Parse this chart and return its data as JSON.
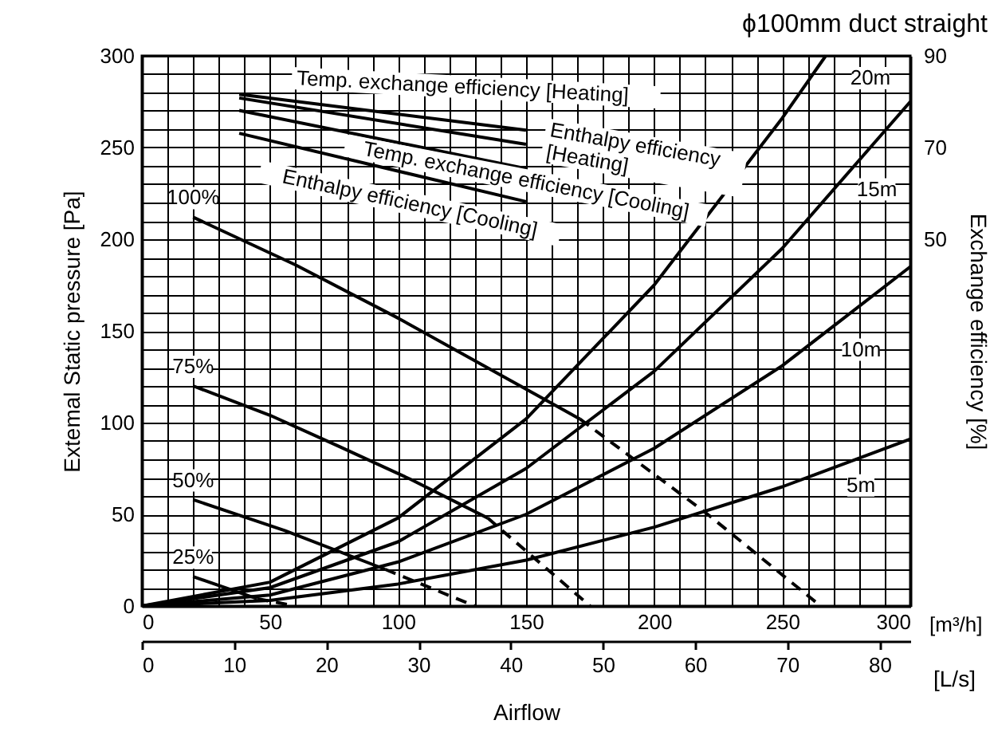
{
  "chart_data": {
    "type": "line",
    "title": "ϕ100mm duct straight",
    "xlabel": "Airflow",
    "ylabel": "Extemal Static pressure [Pa]",
    "y2label": "Exchange efficiency [%]",
    "x2label": "[L/s]",
    "annotations": [
      "[m³/h]"
    ],
    "xlim": [
      0,
      300
    ],
    "xticks": [
      0,
      {
        "value": 10,
        "label": null
      },
      {
        "value": 20,
        "label": null
      },
      {
        "value": 30,
        "label": null
      },
      {
        "value": 40,
        "label": null
      },
      50,
      {
        "value": 60,
        "label": null
      },
      {
        "value": 70,
        "label": null
      },
      {
        "value": 80,
        "label": null
      },
      {
        "value": 90,
        "label": null
      },
      100,
      {
        "value": 110,
        "label": null
      },
      {
        "value": 120,
        "label": null
      },
      {
        "value": 130,
        "label": null
      },
      {
        "value": 140,
        "label": null
      },
      150,
      {
        "value": 160,
        "label": null
      },
      {
        "value": 170,
        "label": null
      },
      {
        "value": 180,
        "label": null
      },
      {
        "value": 190,
        "label": null
      },
      200,
      {
        "value": 210,
        "label": null
      },
      {
        "value": 220,
        "label": null
      },
      {
        "value": 230,
        "label": null
      },
      {
        "value": 240,
        "label": null
      },
      250,
      {
        "value": 260,
        "label": null
      },
      {
        "value": 270,
        "label": null
      },
      {
        "value": 280,
        "label": null
      },
      {
        "value": 290,
        "label": null
      },
      300
    ],
    "ylim": [
      0,
      300
    ],
    "yticks": [
      0,
      {
        "value": 10,
        "label": null
      },
      {
        "value": 20,
        "label": null
      },
      {
        "value": 30,
        "label": null
      },
      {
        "value": 40,
        "label": null
      },
      50,
      {
        "value": 60,
        "label": null
      },
      {
        "value": 70,
        "label": null
      },
      {
        "value": 80,
        "label": null
      },
      {
        "value": 90,
        "label": null
      },
      100,
      {
        "value": 110,
        "label": null
      },
      {
        "value": 120,
        "label": null
      },
      {
        "value": 130,
        "label": null
      },
      {
        "value": 140,
        "label": null
      },
      150,
      {
        "value": 160,
        "label": null
      },
      {
        "value": 170,
        "label": null
      },
      {
        "value": 180,
        "label": null
      },
      {
        "value": 190,
        "label": null
      },
      200,
      {
        "value": 210,
        "label": null
      },
      {
        "value": 220,
        "label": null
      },
      {
        "value": 230,
        "label": null
      },
      {
        "value": 240,
        "label": null
      },
      250,
      {
        "value": 260,
        "label": null
      },
      {
        "value": 270,
        "label": null
      },
      {
        "value": 280,
        "label": null
      },
      {
        "value": 290,
        "label": null
      },
      300
    ],
    "y2lim": [
      -30,
      90
    ],
    "y2ticks": [
      50,
      70,
      90
    ],
    "x2lim": [
      0,
      83.33
    ],
    "x2ticks": [
      0,
      10,
      20,
      30,
      40,
      50,
      60,
      70,
      80
    ],
    "grid": true,
    "series": [
      {
        "name": "20m",
        "color": "#000000",
        "x": [
          0,
          50,
          100,
          150,
          200,
          250,
          267
        ],
        "values": [
          0,
          13,
          48,
          102,
          175,
          266,
          300
        ]
      },
      {
        "name": "15m",
        "color": "#000000",
        "x": [
          0,
          50,
          100,
          150,
          200,
          250,
          300
        ],
        "values": [
          0,
          10,
          35,
          75,
          128,
          195,
          275
        ]
      },
      {
        "name": "10m",
        "color": "#000000",
        "x": [
          0,
          50,
          100,
          150,
          200,
          250,
          300
        ],
        "values": [
          0,
          6,
          24,
          50,
          86,
          131,
          185
        ]
      },
      {
        "name": "5m",
        "color": "#000000",
        "x": [
          0,
          50,
          100,
          150,
          200,
          250,
          300
        ],
        "values": [
          0,
          3,
          12,
          25,
          43,
          65,
          91
        ]
      },
      {
        "name": "100%",
        "color": "#000000",
        "x": [
          20,
          60,
          100,
          140,
          171
        ],
        "values": [
          212,
          186,
          157,
          126,
          102
        ]
      },
      {
        "color": "#000000",
        "line_style": "dashed",
        "x": [
          171,
          220,
          265
        ],
        "values": [
          102,
          51,
          0
        ]
      },
      {
        "name": "75%",
        "color": "#000000",
        "x": [
          20,
          50,
          77,
          105,
          135
        ],
        "values": [
          120,
          104,
          87,
          69,
          48
        ]
      },
      {
        "color": "#000000",
        "line_style": "dashed",
        "x": [
          135,
          175
        ],
        "values": [
          48,
          0
        ]
      },
      {
        "name": "50%",
        "color": "#000000",
        "x": [
          20,
          56,
          95
        ],
        "values": [
          58,
          41,
          20
        ]
      },
      {
        "color": "#000000",
        "line_style": "dashed",
        "x": [
          95,
          130
        ],
        "values": [
          20,
          0
        ]
      },
      {
        "name": "25%",
        "color": "#000000",
        "x": [
          20,
          45
        ],
        "values": [
          16,
          4
        ]
      },
      {
        "color": "#000000",
        "line_style": "dashed",
        "x": [
          45,
          60
        ],
        "values": [
          4,
          0
        ]
      },
      {
        "name": "Temp. exchange efficiency [Heating]",
        "color": "#000000",
        "axis": "y2",
        "x": [
          38,
          150
        ],
        "values": [
          81.6,
          73.8
        ]
      },
      {
        "name": "Enthalpy efficiency [Heating]",
        "color": "#000000",
        "axis": "y2",
        "x": [
          38,
          150
        ],
        "values": [
          80.8,
          70.7
        ]
      },
      {
        "name": "Temp. exchange efficiency [Cooling]",
        "color": "#000000",
        "axis": "y2",
        "x": [
          38,
          150
        ],
        "values": [
          78.1,
          65.4
        ]
      },
      {
        "name": "Enthalpy efficiency [Cooling]",
        "color": "#000000",
        "axis": "y2",
        "x": [
          38,
          150
        ],
        "values": [
          73.1,
          58.2
        ]
      }
    ]
  }
}
